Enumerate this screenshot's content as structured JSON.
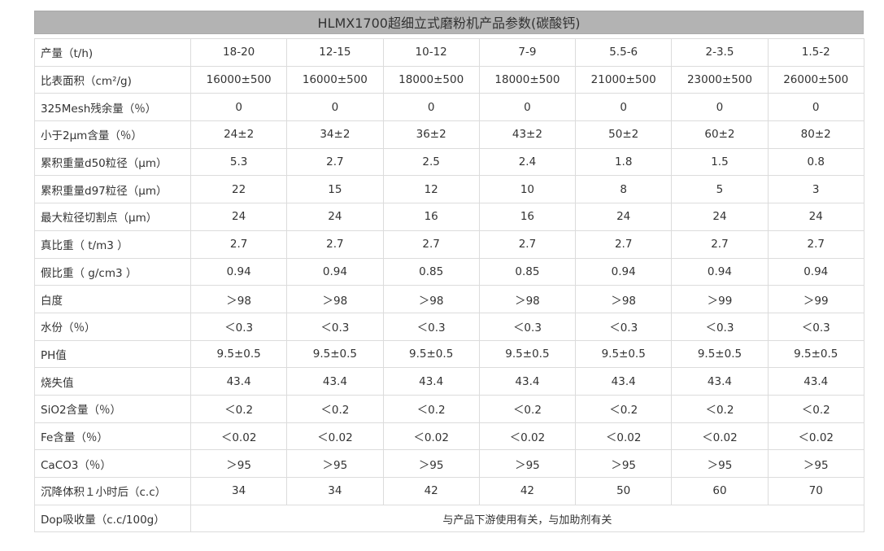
{
  "title": "HLMX1700超细立式磨粉机产品参数(碳酸钙)",
  "rows": [
    {
      "label": "产量（t/h)",
      "values": [
        "18-20",
        "12-15",
        "10-12",
        "7-9",
        "5.5-6",
        "2-3.5",
        "1.5-2"
      ]
    },
    {
      "label": "比表面积（cm²/g)",
      "values": [
        "16000±500",
        "16000±500",
        "18000±500",
        "18000±500",
        "21000±500",
        "23000±500",
        "26000±500"
      ]
    },
    {
      "label": "325Mesh残余量（％）",
      "values": [
        "0",
        "0",
        "0",
        "0",
        "0",
        "0",
        "0"
      ]
    },
    {
      "label": "小于2μm含量（％）",
      "values": [
        "24±2",
        "34±2",
        "36±2",
        "43±2",
        "50±2",
        "60±2",
        "80±2"
      ]
    },
    {
      "label": "累积重量d50粒径（μm）",
      "values": [
        "5.3",
        "2.7",
        "2.5",
        "2.4",
        "1.8",
        "1.5",
        "0.8"
      ]
    },
    {
      "label": "累积重量d97粒径（μm）",
      "values": [
        "22",
        "15",
        "12",
        "10",
        "8",
        "5",
        "3"
      ]
    },
    {
      "label": "最大粒径切割点（μm）",
      "values": [
        "24",
        "24",
        "16",
        "16",
        "24",
        "24",
        "24"
      ]
    },
    {
      "label": "真比重（ t/m3 ）",
      "values": [
        "2.7",
        "2.7",
        "2.7",
        "2.7",
        "2.7",
        "2.7",
        "2.7"
      ]
    },
    {
      "label": "假比重（ g/cm3 ）",
      "values": [
        "0.94",
        "0.94",
        "0.85",
        "0.85",
        "0.94",
        "0.94",
        "0.94"
      ]
    },
    {
      "label": "白度",
      "values": [
        "＞98",
        "＞98",
        "＞98",
        "＞98",
        "＞98",
        "＞99",
        "＞99"
      ]
    },
    {
      "label": "水份（％）",
      "values": [
        "＜0.3",
        "＜0.3",
        "＜0.3",
        "＜0.3",
        "＜0.3",
        "＜0.3",
        "＜0.3"
      ]
    },
    {
      "label": "PH值",
      "values": [
        "9.5±0.5",
        "9.5±0.5",
        "9.5±0.5",
        "9.5±0.5",
        "9.5±0.5",
        "9.5±0.5",
        "9.5±0.5"
      ]
    },
    {
      "label": "烧失值",
      "values": [
        "43.4",
        "43.4",
        "43.4",
        "43.4",
        "43.4",
        "43.4",
        "43.4"
      ]
    },
    {
      "label": "SiO2含量（％）",
      "values": [
        "＜0.2",
        "＜0.2",
        "＜0.2",
        "＜0.2",
        "＜0.2",
        "＜0.2",
        "＜0.2"
      ]
    },
    {
      "label": "Fe含量（％）",
      "values": [
        "＜0.02",
        "＜0.02",
        "＜0.02",
        "＜0.02",
        "＜0.02",
        "＜0.02",
        "＜0.02"
      ]
    },
    {
      "label": "CaCO3（％）",
      "values": [
        "＞95",
        "＞95",
        "＞95",
        "＞95",
        "＞95",
        "＞95",
        "＞95"
      ]
    },
    {
      "label": "沉降体积１小时后（c.c）",
      "values": [
        "34",
        "34",
        "42",
        "42",
        "50",
        "60",
        "70"
      ]
    }
  ],
  "merged_row": {
    "label": "Dop吸收量（c.c/100g）",
    "value": "与产品下游使用有关，与加助剂有关"
  }
}
